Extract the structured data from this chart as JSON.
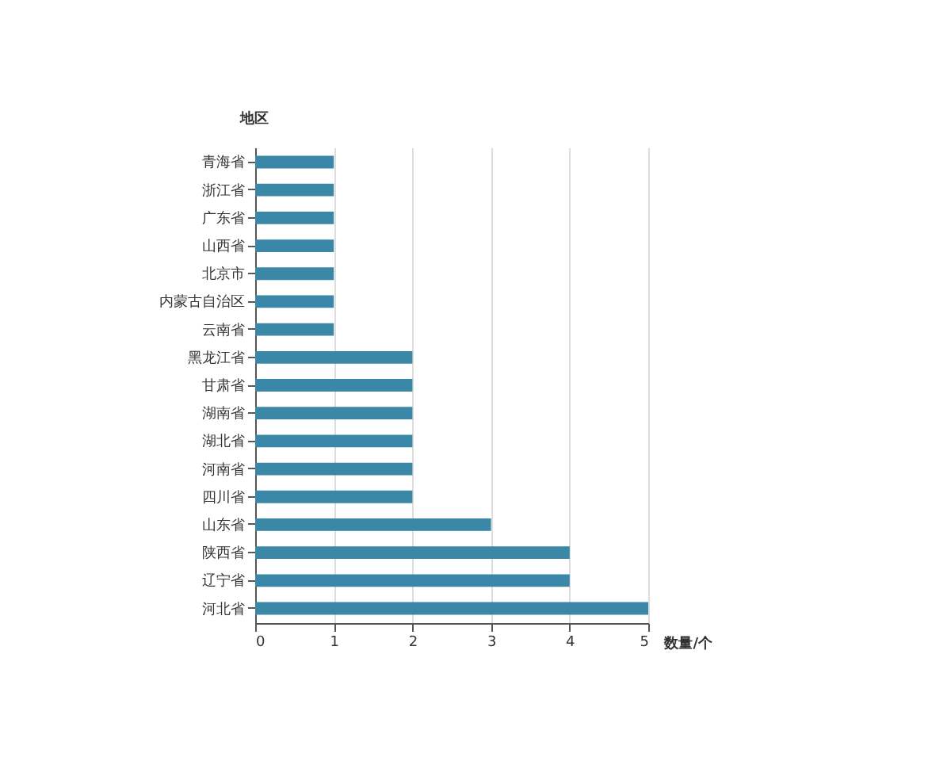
{
  "chart_data": {
    "type": "bar",
    "orientation": "horizontal",
    "xlabel": "数量/个",
    "ylabel": "地区",
    "categories": [
      "青海省",
      "浙江省",
      "广东省",
      "山西省",
      "北京市",
      "内蒙古自治区",
      "云南省",
      "黑龙江省",
      "甘肃省",
      "湖南省",
      "湖北省",
      "河南省",
      "四川省",
      "山东省",
      "陕西省",
      "辽宁省",
      "河北省"
    ],
    "values": [
      1,
      1,
      1,
      1,
      1,
      1,
      1,
      2,
      2,
      2,
      2,
      2,
      2,
      3,
      4,
      4,
      5
    ],
    "color": "#3a87a8",
    "xlim": [
      0,
      5
    ],
    "xticks": [
      0,
      1,
      2,
      3,
      4,
      5
    ],
    "grid": "x"
  }
}
